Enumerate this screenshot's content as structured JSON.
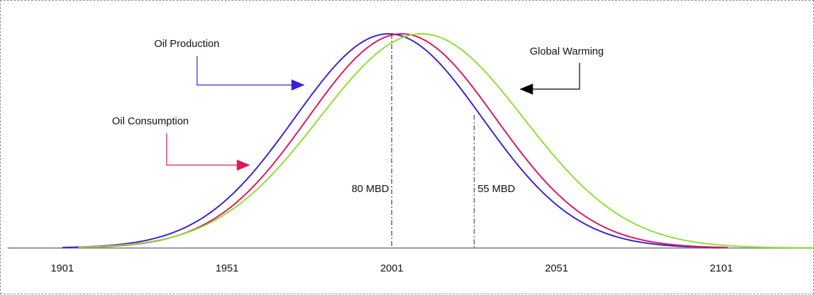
{
  "chart_data": {
    "type": "line",
    "title": "",
    "xlabel": "",
    "ylabel": "",
    "xlim": [
      1901,
      2138
    ],
    "ylim": [
      0,
      1
    ],
    "x_ticks": [
      1901,
      1951,
      2001,
      2051,
      2101
    ],
    "grid": false,
    "series": [
      {
        "name": "Oil Production",
        "color": "#3a1fd6",
        "mean": 2000,
        "sd": 28.5,
        "x_start": 1901,
        "x_end": 2101
      },
      {
        "name": "Oil Consumption",
        "color": "#e0155a",
        "mean": 2004,
        "sd": 28.5,
        "x_start": 1906,
        "x_end": 2103
      },
      {
        "name": "Global Warming",
        "color": "#8fe033",
        "mean": 2010,
        "sd": 31,
        "x_start": 1906,
        "x_end": 2138
      }
    ],
    "annotations": [
      {
        "text": "80 MBD",
        "x": 2001
      },
      {
        "text": "55 MBD",
        "x": 2026
      }
    ],
    "colors": {
      "axis": "#9a9a9a",
      "marker_line": "#444444",
      "arrow": "#000000"
    }
  }
}
